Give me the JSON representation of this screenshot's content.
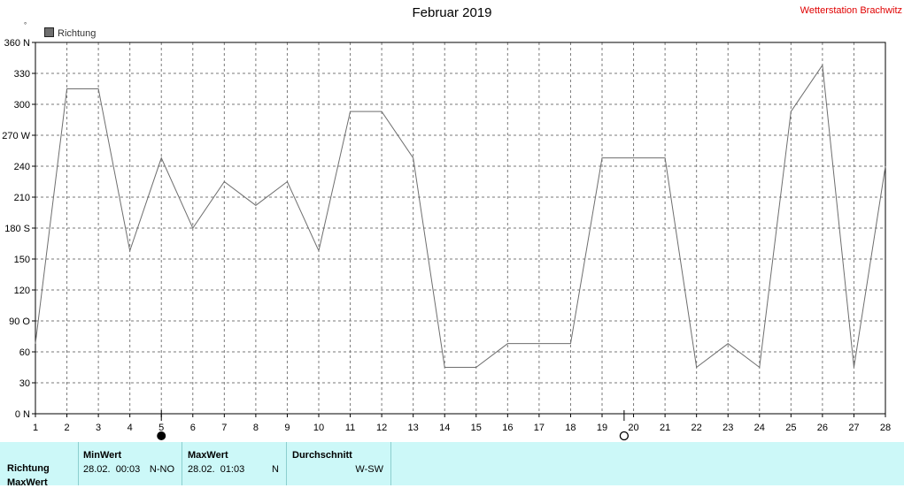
{
  "header": {
    "title": "Februar 2019",
    "station": "Wetterstation Brachwitz"
  },
  "legend": {
    "label": "Richtung",
    "unit_symbol": "°"
  },
  "colors": {
    "series": "#6e6e6e",
    "grid": "#7a7a7a",
    "panel_bg": "#ccf8f8",
    "station": "#e00000"
  },
  "chart_data": {
    "type": "line",
    "title": "Februar 2019",
    "xlabel": "",
    "ylabel": "",
    "xlim": [
      1,
      28
    ],
    "ylim": [
      0,
      360
    ],
    "grid": true,
    "legend_position": "top-left",
    "x_ticks": [
      "1",
      "2",
      "3",
      "4",
      "5",
      "6",
      "7",
      "8",
      "9",
      "10",
      "11",
      "12",
      "13",
      "14",
      "15",
      "16",
      "17",
      "18",
      "19",
      "20",
      "21",
      "22",
      "23",
      "24",
      "25",
      "26",
      "27",
      "28"
    ],
    "y_ticks": [
      {
        "value": 0,
        "label": "0 N"
      },
      {
        "value": 30,
        "label": "30"
      },
      {
        "value": 60,
        "label": "60"
      },
      {
        "value": 90,
        "label": "90 O"
      },
      {
        "value": 120,
        "label": "120"
      },
      {
        "value": 150,
        "label": "150"
      },
      {
        "value": 180,
        "label": "180 S"
      },
      {
        "value": 210,
        "label": "210"
      },
      {
        "value": 240,
        "label": "240"
      },
      {
        "value": 270,
        "label": "270 W"
      },
      {
        "value": 300,
        "label": "300"
      },
      {
        "value": 330,
        "label": "330"
      },
      {
        "value": 360,
        "label": "360 N"
      }
    ],
    "series": [
      {
        "name": "Richtung",
        "x": [
          1,
          2,
          3,
          4,
          5,
          6,
          7,
          8,
          9,
          10,
          11,
          12,
          13,
          14,
          15,
          16,
          17,
          18,
          19,
          20,
          21,
          22,
          23,
          24,
          25,
          26,
          27,
          28
        ],
        "values": [
          68,
          315,
          315,
          158,
          248,
          180,
          225,
          202,
          225,
          158,
          293,
          293,
          248,
          45,
          45,
          68,
          68,
          68,
          248,
          248,
          248,
          45,
          68,
          45,
          293,
          338,
          45,
          240
        ]
      }
    ],
    "markers": [
      {
        "type": "filled-circle",
        "x": 5
      },
      {
        "type": "open-circle",
        "x": 19.7
      }
    ]
  },
  "summary": {
    "row_label": "Richtung",
    "row_label_next": "MaxWert",
    "min": {
      "header": "MinWert",
      "datetime": "28.02.  00:03",
      "value": "N-NO"
    },
    "max": {
      "header": "MaxWert",
      "datetime": "28.02.  01:03",
      "value": "N"
    },
    "avg": {
      "header": "Durchschnitt",
      "value": "W-SW"
    }
  }
}
